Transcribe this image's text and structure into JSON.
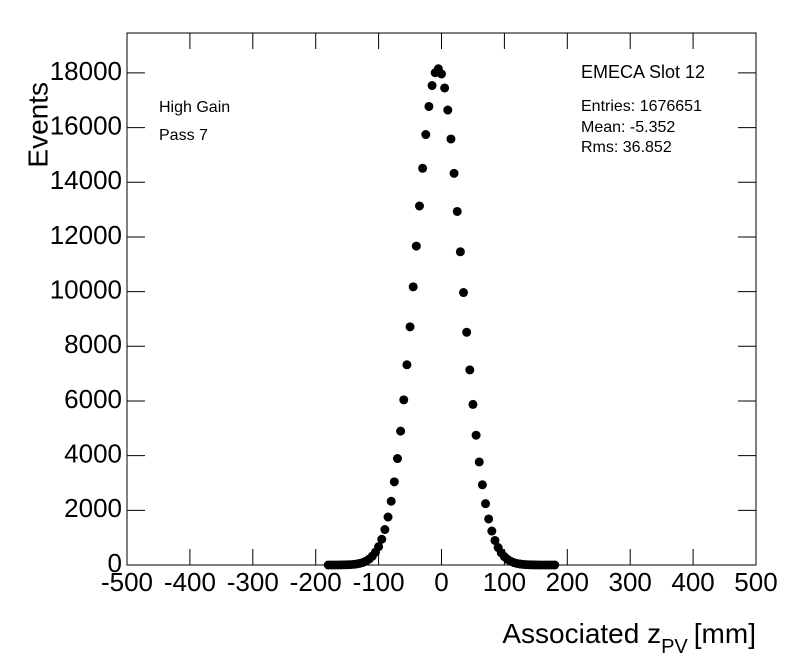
{
  "chart_data": {
    "type": "scatter",
    "stats_title": "EMECA Slot 12",
    "stats": [
      "Entries: 1676651",
      "Mean: -5.352",
      "Rms: 36.852"
    ],
    "annotations": [
      "High Gain",
      "Pass 7"
    ],
    "ylabel": "Events",
    "xlabel": {
      "main": "Associated z",
      "sub": "PV",
      "unit": "[mm]"
    },
    "color": "#000000",
    "xlim": [
      -500,
      500
    ],
    "xticks": [
      -500,
      -400,
      -300,
      -200,
      -100,
      0,
      100,
      200,
      300,
      400,
      500
    ],
    "ylim": [
      0,
      19460
    ],
    "yticks": [
      0,
      2000,
      4000,
      6000,
      8000,
      10000,
      12000,
      14000,
      16000,
      18000
    ],
    "x": [
      -180,
      -175,
      -170,
      -165,
      -160,
      -155,
      -150,
      -145,
      -140,
      -135,
      -130,
      -125,
      -120,
      -115,
      -110,
      -105,
      -100,
      -95,
      -90,
      -85,
      -80,
      -75,
      -70,
      -65,
      -60,
      -55,
      -50,
      -45,
      -40,
      -35,
      -30,
      -25,
      -20,
      -15,
      -10,
      -5,
      0,
      5,
      10,
      15,
      20,
      25,
      30,
      35,
      40,
      45,
      50,
      55,
      60,
      65,
      70,
      75,
      80,
      85,
      90,
      95,
      100,
      105,
      110,
      115,
      120,
      125,
      130,
      135,
      140,
      145,
      150,
      155,
      160,
      165,
      170,
      175,
      180
    ],
    "values": [
      0,
      0,
      1,
      2,
      3,
      5,
      8,
      14,
      23,
      37,
      60,
      93,
      143,
      216,
      323,
      469,
      670,
      942,
      1298,
      1755,
      2332,
      3042,
      3895,
      4897,
      6042,
      7324,
      8711,
      10175,
      11666,
      13132,
      14512,
      15746,
      16772,
      17539,
      18007,
      18151,
      17961,
      17449,
      16643,
      15584,
      14327,
      12931,
      11457,
      9967,
      8513,
      7137,
      5875,
      4748,
      3768,
      2935,
      2243,
      1684,
      1242,
      898,
      639,
      445,
      305,
      205,
      135,
      88,
      56,
      35,
      21,
      13,
      8,
      4,
      3,
      1,
      0,
      0,
      0,
      0,
      0
    ]
  }
}
